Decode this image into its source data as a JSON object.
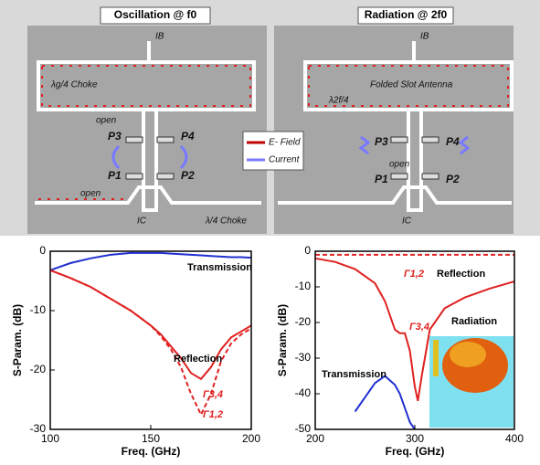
{
  "panels": [
    {
      "title": "Oscillation @ f0",
      "labels": [
        "IB",
        "λg/4 Choke",
        "open",
        "P3",
        "P4",
        "P1",
        "P2",
        "open",
        "IC",
        "λ/4 Choke"
      ]
    },
    {
      "title": "Radiation @ 2f0",
      "labels": [
        "IB",
        "Folded Slot Antenna",
        "λ2f/4",
        "P3",
        "P4",
        "open",
        "P1",
        "P2",
        "IC"
      ]
    }
  ],
  "legend": [
    "E- Field",
    "Current"
  ],
  "chart_data": [
    {
      "type": "line",
      "xlabel": "Freq. (GHz)",
      "ylabel": "S-Param. (dB)",
      "x": [
        100,
        110,
        120,
        130,
        140,
        150,
        155,
        160,
        165,
        170,
        175,
        180,
        185,
        190,
        195,
        200
      ],
      "xlim": [
        100,
        200
      ],
      "xticks": [
        100,
        150,
        200
      ],
      "ylim": [
        -30,
        0
      ],
      "yticks": [
        0,
        -10,
        -20,
        -30
      ],
      "series": [
        {
          "name": "Transmission",
          "color": "#2030d0",
          "dash": false,
          "values": [
            -3.2,
            -2,
            -1.2,
            -0.6,
            -0.3,
            -0.3,
            -0.3,
            -0.4,
            -0.5,
            -0.6,
            -0.7,
            -0.8,
            -0.9,
            -1,
            -1,
            -1.1
          ]
        },
        {
          "name": "Γ3,4",
          "color": "#e02020",
          "dash": false,
          "values": [
            -3.2,
            -4.5,
            -6,
            -8,
            -10,
            -12.5,
            -14,
            -16,
            -18,
            -20.5,
            -21.5,
            -19.5,
            -16.5,
            -14.5,
            -13.5,
            -12.5
          ]
        },
        {
          "name": "Γ1,2",
          "color": "#e02020",
          "dash": true,
          "values": [
            -3.2,
            -4.5,
            -6,
            -8,
            -10,
            -12.5,
            -14.3,
            -16.5,
            -19.5,
            -24,
            -27.5,
            -24,
            -18.5,
            -15.5,
            -14,
            -13
          ]
        }
      ],
      "annotations": [
        "Reflection"
      ]
    },
    {
      "type": "line",
      "xlabel": "Freq. (GHz)",
      "ylabel": "S-Param. (dB)",
      "x": [
        200,
        220,
        240,
        260,
        270,
        280,
        285,
        290,
        295,
        300,
        303,
        307,
        315,
        330,
        350,
        375,
        400
      ],
      "xlim": [
        200,
        400
      ],
      "xticks": [
        200,
        300,
        400
      ],
      "ylim": [
        -50,
        0
      ],
      "yticks": [
        0,
        -10,
        -20,
        -30,
        -40,
        -50
      ],
      "series": [
        {
          "name": "Transmission",
          "color": "#2030d0",
          "dash": false,
          "values": [
            null,
            null,
            -45,
            -37,
            -35,
            -37.5,
            -40,
            -44,
            -48,
            -50,
            null,
            null,
            null,
            null,
            null,
            null,
            null
          ]
        },
        {
          "name": "Γ1,2",
          "color": "#e02020",
          "dash": true,
          "values": [
            -1,
            -1,
            -1,
            -1,
            -1,
            -1,
            -1,
            -1,
            -1,
            -1,
            -1,
            -1,
            -1,
            -1,
            -1,
            -1,
            -1
          ]
        },
        {
          "name": "Γ3,4",
          "color": "#e02020",
          "dash": false,
          "values": [
            -2,
            -3,
            -5,
            -9,
            -14,
            -22,
            -23,
            -23,
            -28,
            -38,
            -42,
            -35,
            -22,
            -16,
            -13,
            -10.5,
            -8.5
          ]
        }
      ],
      "annotations": [
        "Reflection",
        "Radiation"
      ]
    }
  ]
}
